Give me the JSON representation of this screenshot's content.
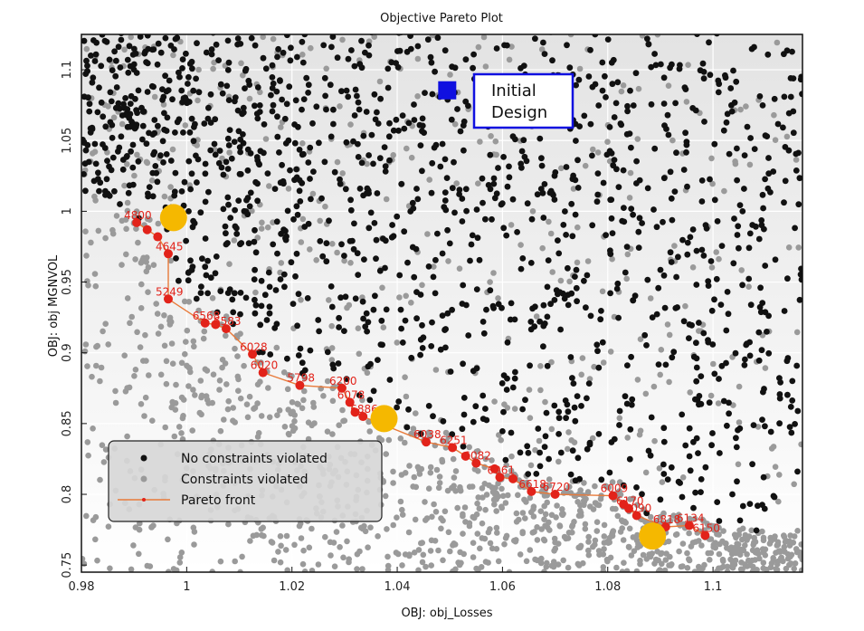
{
  "colors": {
    "feasible": "#111111",
    "violated": "#9a9a9a",
    "pareto": "#e2231a",
    "pareto_line": "#e87a3a",
    "highlight": "#f5b800",
    "initial": "#1010e0"
  },
  "chart_data": {
    "type": "scatter",
    "title": "Objective Pareto Plot",
    "xlabel": "OBJ: obj_Losses",
    "ylabel": "OBJ: obj MGNVOL",
    "xlim": [
      0.98,
      1.117
    ],
    "ylim": [
      0.745,
      1.125
    ],
    "x_ticks": [
      "0.98",
      "1",
      "1.02",
      "1.04",
      "1.06",
      "1.08",
      "1.1"
    ],
    "y_ticks": [
      "0.75",
      "0.8",
      "0.85",
      "0.9",
      "0.95",
      "1",
      "1.05",
      "1.1"
    ],
    "grid": true,
    "legend": {
      "position": "bottom-left",
      "entries": [
        "No constraints violated",
        "Constraints violated",
        "Pareto front"
      ]
    },
    "annotation": {
      "line1": "Initial",
      "line2": "Design"
    },
    "initial_design": {
      "x": 1.0495,
      "y": 1.0855
    },
    "highlighted_points": [
      {
        "x": 0.9975,
        "y": 0.9955
      },
      {
        "x": 1.0375,
        "y": 0.8535
      },
      {
        "x": 1.0885,
        "y": 0.7705
      }
    ],
    "series": [
      {
        "name": "Pareto front",
        "points": [
          {
            "x": 0.9905,
            "y": 0.992,
            "label": "4800"
          },
          {
            "x": 0.9925,
            "y": 0.987,
            "label": ""
          },
          {
            "x": 0.9945,
            "y": 0.982,
            "label": ""
          },
          {
            "x": 0.9965,
            "y": 0.97,
            "label": "4645"
          },
          {
            "x": 0.9965,
            "y": 0.938,
            "label": "5249"
          },
          {
            "x": 1.0035,
            "y": 0.921,
            "label": "6568"
          },
          {
            "x": 1.0055,
            "y": 0.92,
            "label": ""
          },
          {
            "x": 1.0075,
            "y": 0.917,
            "label": "6583"
          },
          {
            "x": 1.0125,
            "y": 0.899,
            "label": "6028"
          },
          {
            "x": 1.0145,
            "y": 0.886,
            "label": "6020"
          },
          {
            "x": 1.0215,
            "y": 0.877,
            "label": "5798"
          },
          {
            "x": 1.0295,
            "y": 0.875,
            "label": "6200"
          },
          {
            "x": 1.031,
            "y": 0.865,
            "label": "6078"
          },
          {
            "x": 1.032,
            "y": 0.858,
            "label": ""
          },
          {
            "x": 1.0335,
            "y": 0.855,
            "label": "6886"
          },
          {
            "x": 1.0455,
            "y": 0.837,
            "label": "6038"
          },
          {
            "x": 1.0505,
            "y": 0.833,
            "label": "6251"
          },
          {
            "x": 1.053,
            "y": 0.827,
            "label": ""
          },
          {
            "x": 1.055,
            "y": 0.822,
            "label": "6082"
          },
          {
            "x": 1.0585,
            "y": 0.818,
            "label": ""
          },
          {
            "x": 1.0595,
            "y": 0.812,
            "label": "6061"
          },
          {
            "x": 1.062,
            "y": 0.811,
            "label": ""
          },
          {
            "x": 1.0655,
            "y": 0.802,
            "label": "6618"
          },
          {
            "x": 1.07,
            "y": 0.8,
            "label": "6720"
          },
          {
            "x": 1.081,
            "y": 0.799,
            "label": "6009"
          },
          {
            "x": 1.083,
            "y": 0.793,
            "label": ""
          },
          {
            "x": 1.084,
            "y": 0.79,
            "label": "6170"
          },
          {
            "x": 1.0855,
            "y": 0.785,
            "label": "6090"
          },
          {
            "x": 1.091,
            "y": 0.777,
            "label": "6818"
          },
          {
            "x": 1.0955,
            "y": 0.778,
            "label": "6134"
          },
          {
            "x": 1.0985,
            "y": 0.771,
            "label": "6150"
          }
        ]
      },
      {
        "name": "No constraints violated",
        "count": 1400
      },
      {
        "name": "Constraints violated",
        "count": 1500
      }
    ]
  }
}
